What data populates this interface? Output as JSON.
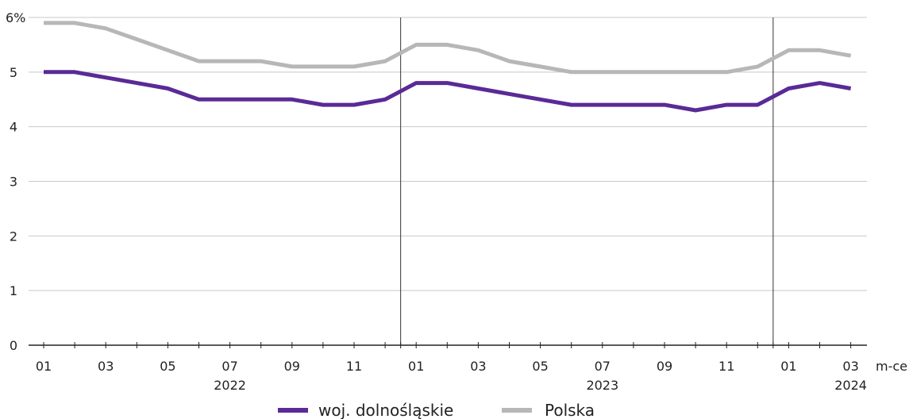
{
  "chart_data": {
    "type": "line",
    "y_unit_label": "6%",
    "x_unit_label": "m-ce",
    "ylim": [
      0,
      6
    ],
    "y_ticks": [
      "0",
      "1",
      "2",
      "3",
      "4",
      "5"
    ],
    "grid": "horizontal",
    "legend_placement": "bottom-center",
    "x_tick_labels": [
      "01",
      "03",
      "05",
      "07",
      "09",
      "11",
      "01",
      "03",
      "05",
      "07",
      "09",
      "11",
      "01",
      "03"
    ],
    "x_tick_label_index": [
      0,
      2,
      4,
      6,
      8,
      10,
      12,
      14,
      16,
      18,
      20,
      22,
      24,
      26
    ],
    "years": [
      {
        "label": "2022",
        "month_index": 6
      },
      {
        "label": "2023",
        "month_index": 18
      },
      {
        "label": "2024",
        "month_index": 26
      }
    ],
    "year_separators_after_index": [
      11,
      23
    ],
    "series": [
      {
        "name": "woj. dolnośląskie",
        "color": "#5a2a96",
        "values": [
          5.0,
          5.0,
          4.9,
          4.8,
          4.7,
          4.5,
          4.5,
          4.5,
          4.5,
          4.4,
          4.4,
          4.5,
          4.8,
          4.8,
          4.7,
          4.6,
          4.5,
          4.4,
          4.4,
          4.4,
          4.4,
          4.3,
          4.4,
          4.4,
          4.7,
          4.8,
          4.7
        ]
      },
      {
        "name": "Polska",
        "color": "#b7b7b7",
        "values": [
          5.9,
          5.9,
          5.8,
          5.6,
          5.4,
          5.2,
          5.2,
          5.2,
          5.1,
          5.1,
          5.1,
          5.2,
          5.5,
          5.5,
          5.4,
          5.2,
          5.1,
          5.0,
          5.0,
          5.0,
          5.0,
          5.0,
          5.0,
          5.1,
          5.4,
          5.4,
          5.3
        ]
      }
    ]
  }
}
